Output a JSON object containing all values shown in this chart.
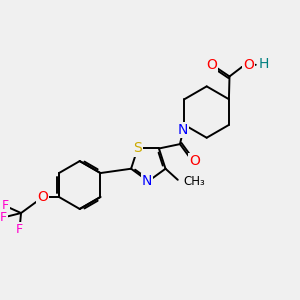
{
  "bg_color": "#f0f0f0",
  "bond_color": "#000000",
  "bond_width": 1.4,
  "atom_colors": {
    "O": "#ff0000",
    "N": "#0000ff",
    "S": "#ccaa00",
    "F": "#ff00cc",
    "H": "#008080",
    "C": "#000000"
  },
  "font_size": 9,
  "fig_size": [
    3.0,
    3.0
  ],
  "dpi": 100
}
